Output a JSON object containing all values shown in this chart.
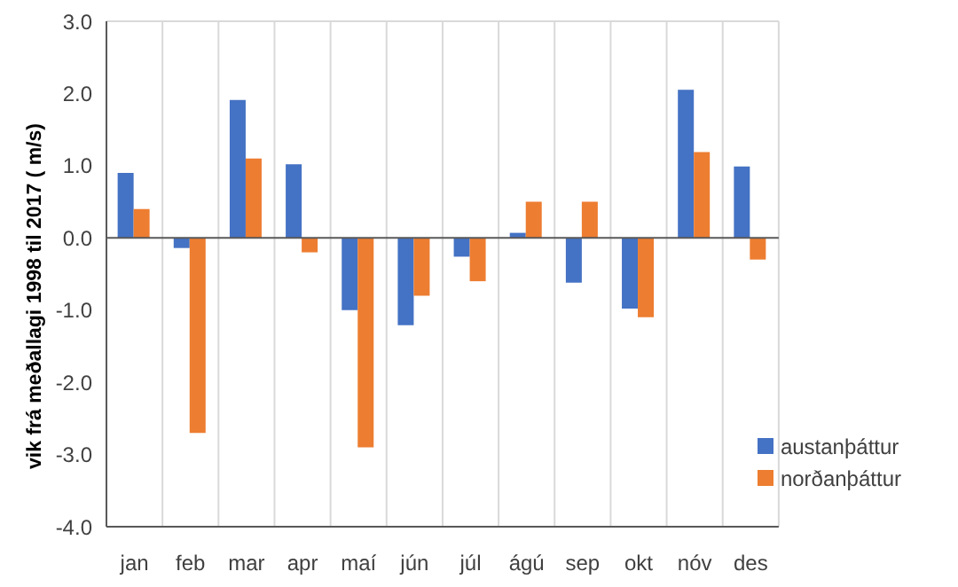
{
  "chart_data": {
    "type": "bar",
    "ylabel": "vik frá meðallagi 1998 til 2017 ( m/s)",
    "categories": [
      "jan",
      "feb",
      "mar",
      "apr",
      "maí",
      "jún",
      "júl",
      "ágú",
      "sep",
      "okt",
      "nóv",
      "des"
    ],
    "series": [
      {
        "name": "austanþáttur",
        "color": "#4472c4",
        "values": [
          0.9,
          -0.14,
          1.91,
          1.02,
          -1.0,
          -1.21,
          -0.26,
          0.07,
          -0.62,
          -0.98,
          2.05,
          0.99
        ]
      },
      {
        "name": "norðanþáttur",
        "color": "#ed7d31",
        "values": [
          0.4,
          -2.7,
          1.1,
          -0.2,
          -2.9,
          -0.8,
          -0.6,
          0.5,
          0.5,
          -1.1,
          1.19,
          -0.3
        ]
      }
    ],
    "ylim": [
      -4,
      3
    ],
    "yticks": [
      {
        "value": -4,
        "label": "-4.0"
      },
      {
        "value": -3,
        "label": "-3.0"
      },
      {
        "value": -2,
        "label": "-2.0"
      },
      {
        "value": -1,
        "label": "-1.0"
      },
      {
        "value": 0,
        "label": "0.0"
      },
      {
        "value": 1,
        "label": "1.0"
      },
      {
        "value": 2,
        "label": "2.0"
      },
      {
        "value": 3,
        "label": "3.0"
      }
    ],
    "grid": true,
    "legend": "bottom right"
  }
}
